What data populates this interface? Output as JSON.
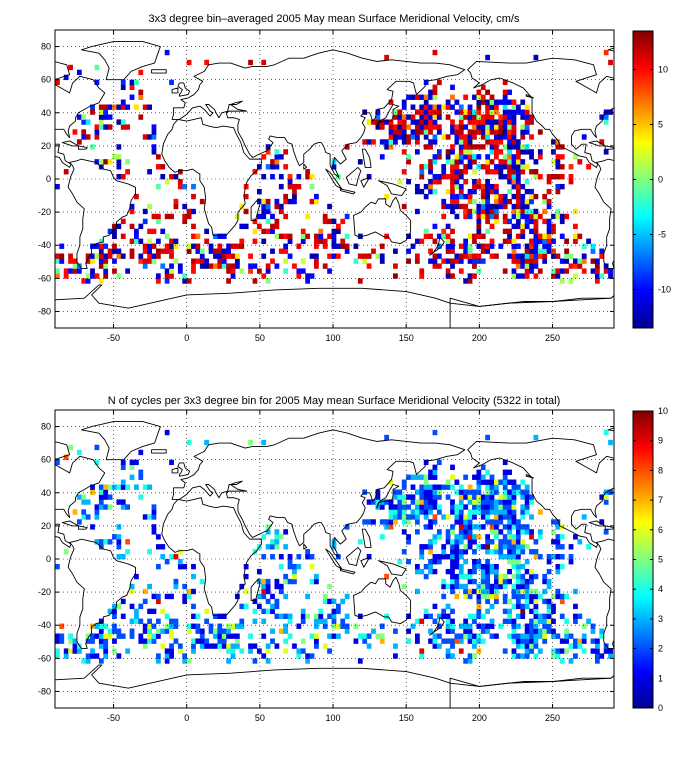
{
  "chart_data": [
    {
      "type": "heatmap",
      "title": "3x3 degree bin–averaged 2005 May mean Surface Meridional Velocity, cm/s",
      "x_ticks": [
        -50,
        0,
        50,
        100,
        150,
        200,
        250
      ],
      "y_ticks": [
        -80,
        -60,
        -40,
        -20,
        0,
        20,
        40,
        60,
        80
      ],
      "xlim": [
        -90,
        292
      ],
      "ylim": [
        -90,
        90
      ],
      "grid": true,
      "colorbar": {
        "range": [
          -13.5,
          13.5
        ],
        "ticks": [
          -10,
          -5,
          0,
          5,
          10
        ],
        "colormap": "jet"
      },
      "bin_size_deg": 3
    },
    {
      "type": "heatmap",
      "title": "N of cycles per 3x3 degree bin for 2005 May mean Surface Meridional Velocity (5322 in total)",
      "x_ticks": [
        -50,
        0,
        50,
        100,
        150,
        200,
        250
      ],
      "y_ticks": [
        -80,
        -60,
        -40,
        -20,
        0,
        20,
        40,
        60,
        80
      ],
      "xlim": [
        -90,
        292
      ],
      "ylim": [
        -90,
        90
      ],
      "grid": true,
      "colorbar": {
        "range": [
          0,
          10
        ],
        "ticks": [
          0,
          1,
          2,
          3,
          4,
          5,
          6,
          7,
          8,
          9,
          10
        ],
        "colormap": "jet"
      },
      "bin_size_deg": 3
    }
  ]
}
